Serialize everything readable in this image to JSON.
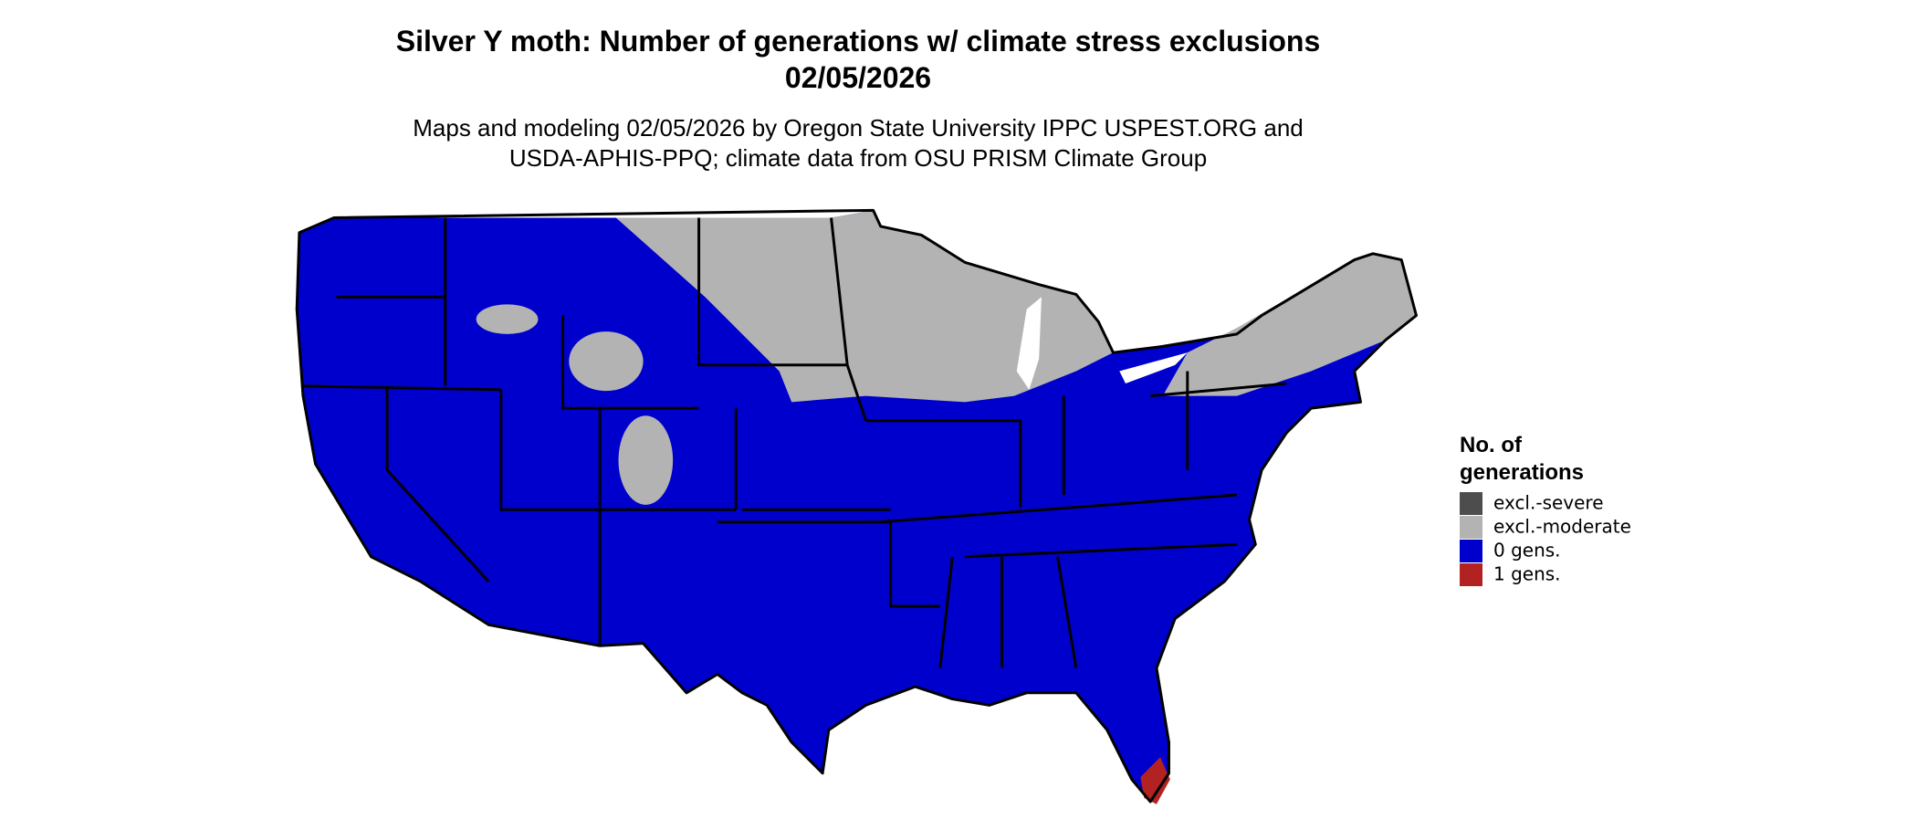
{
  "title": "Silver Y moth: Number of generations w/ climate stress exclusions",
  "date": "02/05/2026",
  "subtitle": [
    "Maps and modeling 02/05/2026 by Oregon State University IPPC USPEST.ORG and",
    "USDA-APHIS-PPQ; climate data from OSU PRISM Climate Group"
  ],
  "legend": {
    "title": [
      "No. of",
      "generations"
    ],
    "items": [
      {
        "label": "excl.-severe",
        "color": "#4d4d4d"
      },
      {
        "label": "excl.-moderate",
        "color": "#b3b3b3"
      },
      {
        "label": "0 gens.",
        "color": "#0000cc"
      },
      {
        "label": "1 gens.",
        "color": "#b22222"
      }
    ]
  }
}
